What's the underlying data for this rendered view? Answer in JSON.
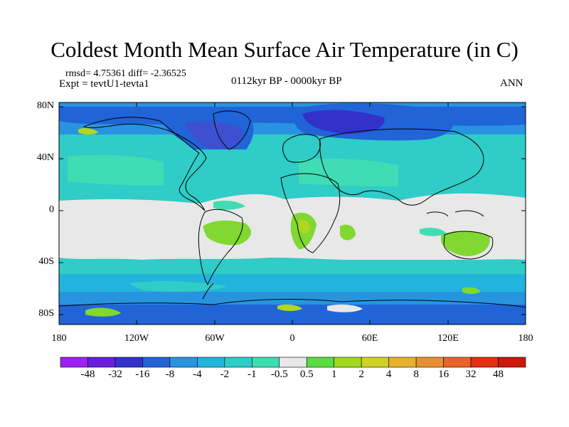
{
  "title": "Coldest Month Mean Surface Air Temperature (in C)",
  "stats": "rmsd= 4.75361 diff= -2.36525",
  "experiment": "Expt = tevtU1-tevta1",
  "period": "0112kyr BP - 0000kyr BP",
  "season": "ANN",
  "lat_labels": [
    "80N",
    "40N",
    "0",
    "40S",
    "80S"
  ],
  "lon_labels": [
    "180",
    "120W",
    "60W",
    "0",
    "60E",
    "120E",
    "180"
  ],
  "colorbar": {
    "labels": [
      "-48",
      "-32",
      "-16",
      "-8",
      "-4",
      "-2",
      "-1",
      "-0.5",
      "0.5",
      "1",
      "2",
      "4",
      "8",
      "16",
      "32",
      "48"
    ],
    "colors": [
      "#a020f0",
      "#6a20d8",
      "#3232c8",
      "#2064d8",
      "#2894e0",
      "#22b4dc",
      "#30ccc8",
      "#40dcb4",
      "#e8e8e8",
      "#58dc40",
      "#a0d820",
      "#d0d028",
      "#e8b030",
      "#e89030",
      "#e86428",
      "#e03010",
      "#c81a0a"
    ]
  },
  "colors": {
    "background": "#ffffff",
    "coastline": "#000000",
    "land_polar": "#3c64d2",
    "deep_cold": "#3232c8",
    "cold": "#2894e0",
    "mid_cold": "#22b4dc",
    "cool": "#30ccc8",
    "neutral": "#e8e8e8",
    "warm": "#80d830",
    "warmer": "#b0d820"
  }
}
